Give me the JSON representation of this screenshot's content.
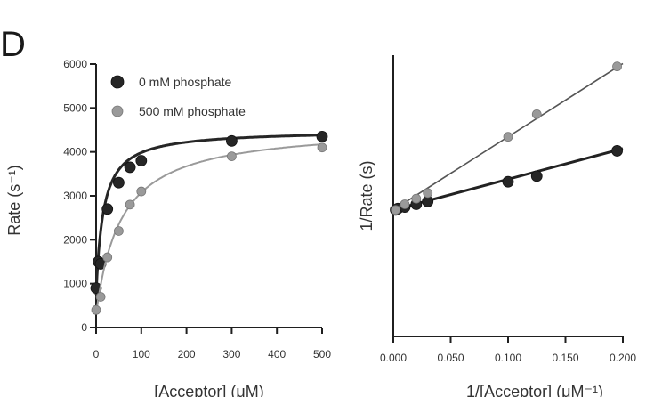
{
  "figure": {
    "panel_label": "D",
    "colors": {
      "dark": "#262626",
      "light": "#9a9a9a",
      "axis": "#1f1f1f"
    }
  },
  "chart_data": [
    {
      "type": "line",
      "panel": "left",
      "xlabel": "[Acceptor] (μM)",
      "ylabel": "Rate (s⁻¹)",
      "xlim": [
        0,
        500
      ],
      "ylim": [
        0,
        6000
      ],
      "x_ticks": [
        "0",
        "100",
        "200",
        "300",
        "400",
        "500"
      ],
      "y_ticks": [
        "0",
        "1000",
        "2000",
        "3000",
        "4000",
        "5000",
        "6000"
      ],
      "grid": false,
      "legend_position": "top-left",
      "series": [
        {
          "name": "0 mM phosphate",
          "color": "dark",
          "points": [
            {
              "x": 0,
              "y": 900
            },
            {
              "x": 5,
              "y": 1500
            },
            {
              "x": 10,
              "y": 1450
            },
            {
              "x": 25,
              "y": 2700
            },
            {
              "x": 50,
              "y": 3300
            },
            {
              "x": 75,
              "y": 3650
            },
            {
              "x": 100,
              "y": 3800
            },
            {
              "x": 300,
              "y": 4250
            },
            {
              "x": 500,
              "y": 4350
            }
          ]
        },
        {
          "name": "500 mM phosphate",
          "color": "light",
          "points": [
            {
              "x": 0,
              "y": 400
            },
            {
              "x": 10,
              "y": 700
            },
            {
              "x": 25,
              "y": 1600
            },
            {
              "x": 50,
              "y": 2200
            },
            {
              "x": 75,
              "y": 2800
            },
            {
              "x": 100,
              "y": 3100
            },
            {
              "x": 300,
              "y": 3900
            },
            {
              "x": 500,
              "y": 4100
            }
          ]
        }
      ]
    },
    {
      "type": "line",
      "panel": "right",
      "xlabel": "1/[Acceptor] (μM⁻¹)",
      "ylabel": "1/Rate (s)",
      "xlim": [
        0,
        0.2
      ],
      "ylim": [
        0,
        1
      ],
      "x_ticks": [
        "0.000",
        "0.050",
        "0.100",
        "0.150",
        "0.200"
      ],
      "grid": false,
      "series": [
        {
          "name": "0 mM phosphate",
          "color": "dark",
          "points": [
            {
              "x": 0.002,
              "y": 0.45
            },
            {
              "x": 0.004,
              "y": 0.455
            },
            {
              "x": 0.01,
              "y": 0.46
            },
            {
              "x": 0.02,
              "y": 0.47
            },
            {
              "x": 0.03,
              "y": 0.48
            },
            {
              "x": 0.1,
              "y": 0.55
            },
            {
              "x": 0.125,
              "y": 0.57
            },
            {
              "x": 0.195,
              "y": 0.66
            }
          ]
        },
        {
          "name": "500 mM phosphate",
          "color": "light",
          "points": [
            {
              "x": 0.002,
              "y": 0.45
            },
            {
              "x": 0.01,
              "y": 0.47
            },
            {
              "x": 0.02,
              "y": 0.49
            },
            {
              "x": 0.03,
              "y": 0.51
            },
            {
              "x": 0.1,
              "y": 0.71
            },
            {
              "x": 0.125,
              "y": 0.79
            },
            {
              "x": 0.195,
              "y": 0.96
            }
          ]
        }
      ]
    }
  ]
}
